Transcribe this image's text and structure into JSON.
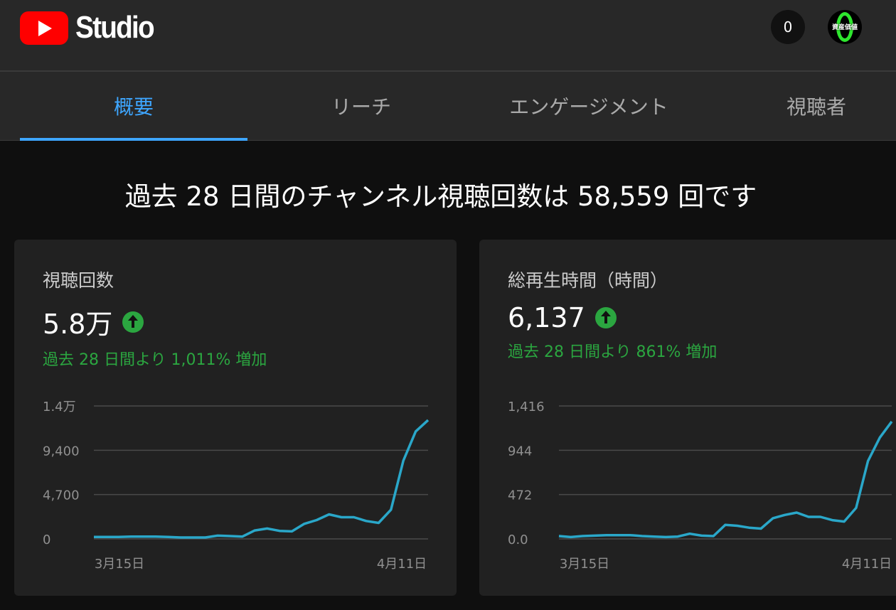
{
  "header": {
    "logo_text": "Studio",
    "notification_count": "0",
    "avatar_text": "資産価値"
  },
  "tabs": [
    {
      "label": "概要",
      "active": true
    },
    {
      "label": "リーチ",
      "active": false
    },
    {
      "label": "エンゲージメント",
      "active": false
    },
    {
      "label": "視聴者",
      "active": false
    }
  ],
  "headline": "過去 28 日間のチャンネル視聴回数は 58,559 回です",
  "cards": [
    {
      "title": "視聴回数",
      "value": "5.8万",
      "change": "過去 28 日間より 1,011% 増加"
    },
    {
      "title": "総再生時間（時間）",
      "value": "6,137",
      "change": "過去 28 日間より 861% 増加"
    }
  ],
  "colors": {
    "accent": "#3ea6ff",
    "positive": "#2ba640",
    "line": "#2aa7c9"
  },
  "chart_data": [
    {
      "type": "line",
      "yticks": [
        "1.4万",
        "9,400",
        "4,700",
        "0"
      ],
      "ytick_values": [
        14100,
        9400,
        4700,
        0
      ],
      "xticks": [
        "3月15日",
        "4月11日"
      ],
      "ylim": [
        0,
        14100
      ],
      "values": [
        200,
        200,
        200,
        250,
        250,
        250,
        200,
        150,
        150,
        150,
        350,
        300,
        250,
        900,
        1100,
        850,
        800,
        1600,
        2000,
        2600,
        2300,
        2300,
        1900,
        1700,
        3100,
        8300,
        11400,
        12600
      ]
    },
    {
      "type": "line",
      "yticks": [
        "1,416",
        "944",
        "472",
        "0.0"
      ],
      "ytick_values": [
        1416,
        944,
        472,
        0
      ],
      "xticks": [
        "3月15日",
        "4月11日"
      ],
      "ylim": [
        0,
        1416
      ],
      "values": [
        30,
        20,
        30,
        35,
        40,
        40,
        40,
        30,
        25,
        20,
        25,
        55,
        35,
        30,
        150,
        140,
        120,
        110,
        220,
        255,
        280,
        235,
        235,
        200,
        185,
        330,
        830,
        1080,
        1250
      ]
    }
  ]
}
